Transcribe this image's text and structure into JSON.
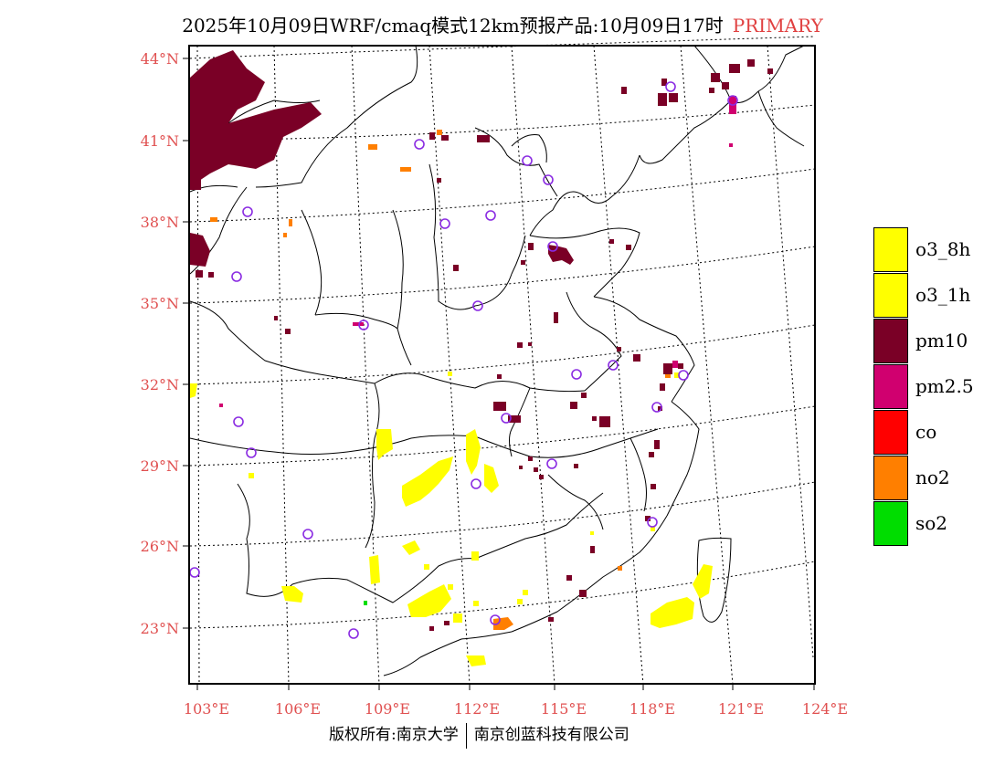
{
  "header": {
    "title": "2025年10月09日WRF/cmaq模式12km预报产品:10月09日17时",
    "tag": "PRIMARY"
  },
  "axes": {
    "lat_labels": [
      "44°N",
      "41°N",
      "38°N",
      "35°N",
      "32°N",
      "29°N",
      "26°N",
      "23°N"
    ],
    "lon_labels": [
      "103°E",
      "106°E",
      "109°E",
      "112°E",
      "115°E",
      "118°E",
      "121°E",
      "124°E"
    ]
  },
  "legend": {
    "items": [
      {
        "label": "o3_8h",
        "color": "#ffff00"
      },
      {
        "label": "o3_1h",
        "color": "#ffff00"
      },
      {
        "label": "pm10",
        "color": "#7a0026"
      },
      {
        "label": "pm2.5",
        "color": "#d0006f"
      },
      {
        "label": "co",
        "color": "#ff0000"
      },
      {
        "label": "no2",
        "color": "#ff7f00"
      },
      {
        "label": "so2",
        "color": "#00dd00"
      }
    ]
  },
  "colors": {
    "pm10": "#7a0026",
    "pm25": "#d0006f",
    "o3": "#ffff00",
    "no2": "#ff7f00",
    "so2": "#00dd00",
    "station": "#8a2be2"
  },
  "footer": {
    "left": "版权所有:南京大学",
    "right": "南京创蓝科技有限公司"
  }
}
